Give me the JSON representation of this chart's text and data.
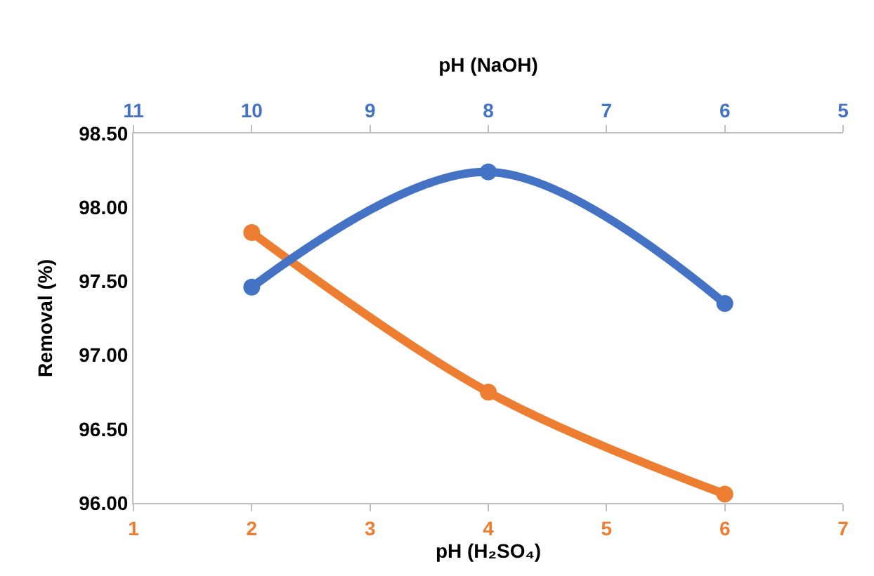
{
  "chart_data": {
    "type": "line",
    "xlabel": "pH (H₂SO₄)",
    "x2label": "pH (NaOH)",
    "ylabel": "Removal (%)",
    "xlim": [
      1,
      7
    ],
    "xticks": [
      1,
      2,
      3,
      4,
      5,
      6,
      7
    ],
    "x2lim": [
      11,
      5
    ],
    "x2ticks": [
      11,
      10,
      9,
      8,
      7,
      6,
      5
    ],
    "ylim": [
      96,
      98.5
    ],
    "yticks": [
      {
        "value": 96,
        "label": "96.00"
      },
      {
        "value": 96.5,
        "label": "96.50"
      },
      {
        "value": 97,
        "label": "97.00"
      },
      {
        "value": 97.5,
        "label": "97.50"
      },
      {
        "value": 98,
        "label": "98.00"
      },
      {
        "value": 98.5,
        "label": "98.50"
      }
    ],
    "legend": false,
    "marker": "circle",
    "line_style": "solid",
    "series": [
      {
        "color": "#4472c4",
        "axis": "x2",
        "x": [
          10,
          8,
          6
        ],
        "values": [
          97.46,
          98.24,
          97.35
        ]
      },
      {
        "color": "#ed7d31",
        "x": [
          2,
          4,
          6
        ],
        "values": [
          97.83,
          96.75,
          96.06
        ]
      }
    ]
  }
}
